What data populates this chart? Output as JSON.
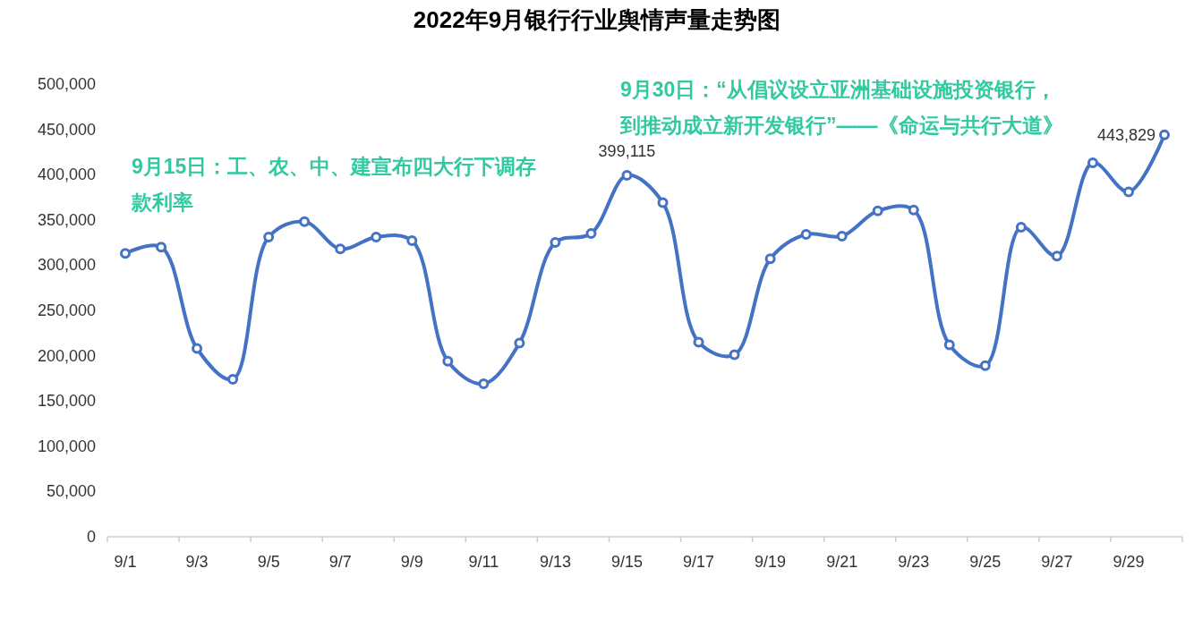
{
  "chart_data": {
    "type": "line",
    "title": "2022年9月银行行业舆情声量走势图",
    "annotations": [
      "9月15日：工、农、中、建宣布四大行下调存款利率",
      "9月30日：“从倡议设立亚洲基础设施投资银行，到推动成立新开发银行”——《命运与共行大道》"
    ],
    "categories": [
      "9/1",
      null,
      "9/3",
      null,
      "9/5",
      null,
      "9/7",
      null,
      "9/9",
      null,
      "9/11",
      null,
      "9/13",
      null,
      "9/15",
      null,
      "9/17",
      null,
      "9/19",
      null,
      "9/21",
      null,
      "9/23",
      null,
      "9/25",
      null,
      "9/27",
      null,
      "9/29",
      null
    ],
    "series": [
      {
        "color": "#4472c4",
        "values": [
          313000,
          320000,
          208000,
          174000,
          331000,
          348000,
          318000,
          331000,
          327000,
          194000,
          169000,
          214000,
          325000,
          335000,
          399115,
          369000,
          215000,
          201000,
          307000,
          334000,
          332000,
          360000,
          361000,
          212000,
          189000,
          342000,
          310000,
          413000,
          381000,
          443829
        ],
        "value_labels": [
          null,
          null,
          null,
          null,
          null,
          null,
          null,
          null,
          null,
          null,
          null,
          null,
          null,
          null,
          "399,115",
          null,
          null,
          null,
          null,
          null,
          null,
          null,
          null,
          null,
          null,
          null,
          null,
          null,
          null,
          "443,829"
        ]
      }
    ],
    "ylim": [
      0,
      500000
    ],
    "yticks": [
      0,
      {
        "value": 50000,
        "label": "50,000"
      },
      {
        "value": 100000,
        "label": "100,000"
      },
      {
        "value": 150000,
        "label": "150,000"
      },
      {
        "value": 200000,
        "label": "200,000"
      },
      {
        "value": 250000,
        "label": "250,000"
      },
      {
        "value": 300000,
        "label": "300,000"
      },
      {
        "value": 350000,
        "label": "350,000"
      },
      {
        "value": 400000,
        "label": "400,000"
      },
      {
        "value": 450000,
        "label": "450,000"
      },
      {
        "value": 500000,
        "label": "500,000"
      }
    ],
    "marker": "circle",
    "line_style": "solid"
  }
}
